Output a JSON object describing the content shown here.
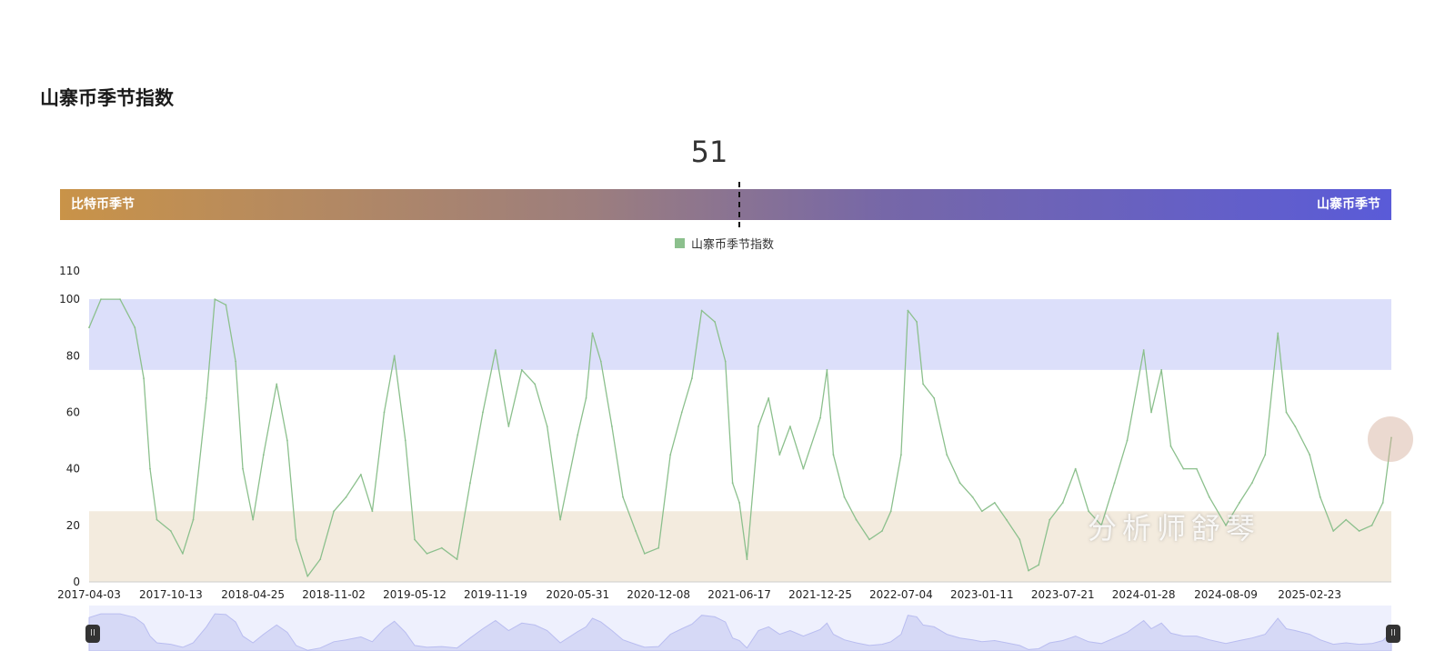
{
  "page": {
    "title": "山寨币季节指数"
  },
  "gauge": {
    "value": "51",
    "left_label": "比特币季节",
    "right_label": "山寨币季节",
    "value_fraction": 0.51
  },
  "legend": {
    "label": "山寨币季节指数",
    "color": "#8cc08d"
  },
  "watermark": "分析师舒琴",
  "chart_data": {
    "type": "line",
    "title": "山寨币季节指数",
    "ylim": [
      0,
      110
    ],
    "y_ticks": [
      "0",
      "20",
      "40",
      "60",
      "80",
      "100",
      "110"
    ],
    "x_ticks": [
      "2017-04-03",
      "2017-10-13",
      "2018-04-25",
      "2018-11-02",
      "2019-05-12",
      "2019-11-19",
      "2020-05-31",
      "2020-12-08",
      "2021-06-17",
      "2021-12-25",
      "2022-07-04",
      "2023-01-11",
      "2023-07-21",
      "2024-01-28",
      "2024-08-09",
      "2025-02-23"
    ],
    "x_range": [
      "2017-04-03",
      "2025-09-04"
    ],
    "bands": [
      {
        "from": 75,
        "to": 100,
        "color": "#dcdffa"
      },
      {
        "from": 0,
        "to": 25,
        "color": "#f3ebde"
      }
    ],
    "series": [
      {
        "name": "山寨币季节指数",
        "color": "#8cc08d",
        "points": [
          [
            "2017-04-03",
            90
          ],
          [
            "2017-05-01",
            100
          ],
          [
            "2017-06-15",
            100
          ],
          [
            "2017-07-20",
            90
          ],
          [
            "2017-08-10",
            72
          ],
          [
            "2017-08-25",
            40
          ],
          [
            "2017-09-10",
            22
          ],
          [
            "2017-10-13",
            18
          ],
          [
            "2017-11-10",
            10
          ],
          [
            "2017-12-05",
            22
          ],
          [
            "2018-01-05",
            65
          ],
          [
            "2018-01-25",
            100
          ],
          [
            "2018-02-20",
            98
          ],
          [
            "2018-03-15",
            78
          ],
          [
            "2018-04-01",
            40
          ],
          [
            "2018-04-25",
            22
          ],
          [
            "2018-05-20",
            45
          ],
          [
            "2018-06-20",
            70
          ],
          [
            "2018-07-15",
            50
          ],
          [
            "2018-08-05",
            15
          ],
          [
            "2018-09-01",
            2
          ],
          [
            "2018-10-01",
            8
          ],
          [
            "2018-11-02",
            25
          ],
          [
            "2018-12-01",
            30
          ],
          [
            "2019-01-05",
            38
          ],
          [
            "2019-02-01",
            25
          ],
          [
            "2019-03-01",
            60
          ],
          [
            "2019-03-25",
            80
          ],
          [
            "2019-04-20",
            50
          ],
          [
            "2019-05-12",
            15
          ],
          [
            "2019-06-10",
            10
          ],
          [
            "2019-07-15",
            12
          ],
          [
            "2019-08-20",
            8
          ],
          [
            "2019-09-20",
            35
          ],
          [
            "2019-10-20",
            60
          ],
          [
            "2019-11-19",
            82
          ],
          [
            "2019-12-20",
            55
          ],
          [
            "2020-01-20",
            75
          ],
          [
            "2020-02-20",
            70
          ],
          [
            "2020-03-20",
            55
          ],
          [
            "2020-04-20",
            22
          ],
          [
            "2020-05-31",
            52
          ],
          [
            "2020-06-20",
            65
          ],
          [
            "2020-07-05",
            88
          ],
          [
            "2020-07-25",
            78
          ],
          [
            "2020-08-20",
            55
          ],
          [
            "2020-09-15",
            30
          ],
          [
            "2020-10-15",
            18
          ],
          [
            "2020-11-05",
            10
          ],
          [
            "2020-12-08",
            12
          ],
          [
            "2021-01-05",
            45
          ],
          [
            "2021-02-01",
            60
          ],
          [
            "2021-02-25",
            72
          ],
          [
            "2021-03-20",
            96
          ],
          [
            "2021-04-20",
            92
          ],
          [
            "2021-05-15",
            78
          ],
          [
            "2021-06-01",
            35
          ],
          [
            "2021-06-17",
            28
          ],
          [
            "2021-07-05",
            8
          ],
          [
            "2021-08-01",
            55
          ],
          [
            "2021-08-25",
            65
          ],
          [
            "2021-09-20",
            45
          ],
          [
            "2021-10-15",
            55
          ],
          [
            "2021-11-15",
            40
          ],
          [
            "2021-12-25",
            58
          ],
          [
            "2022-01-10",
            75
          ],
          [
            "2022-01-25",
            45
          ],
          [
            "2022-02-20",
            30
          ],
          [
            "2022-03-20",
            22
          ],
          [
            "2022-04-20",
            15
          ],
          [
            "2022-05-20",
            18
          ],
          [
            "2022-06-10",
            25
          ],
          [
            "2022-07-04",
            45
          ],
          [
            "2022-07-20",
            96
          ],
          [
            "2022-08-10",
            92
          ],
          [
            "2022-08-25",
            70
          ],
          [
            "2022-09-20",
            65
          ],
          [
            "2022-10-20",
            45
          ],
          [
            "2022-11-20",
            35
          ],
          [
            "2022-12-20",
            30
          ],
          [
            "2023-01-11",
            25
          ],
          [
            "2023-02-10",
            28
          ],
          [
            "2023-03-10",
            22
          ],
          [
            "2023-04-10",
            15
          ],
          [
            "2023-05-01",
            4
          ],
          [
            "2023-05-25",
            6
          ],
          [
            "2023-06-20",
            22
          ],
          [
            "2023-07-21",
            28
          ],
          [
            "2023-08-20",
            40
          ],
          [
            "2023-09-20",
            25
          ],
          [
            "2023-10-20",
            20
          ],
          [
            "2023-11-20",
            35
          ],
          [
            "2023-12-20",
            50
          ],
          [
            "2024-01-28",
            82
          ],
          [
            "2024-02-15",
            60
          ],
          [
            "2024-03-10",
            75
          ],
          [
            "2024-04-01",
            48
          ],
          [
            "2024-05-01",
            40
          ],
          [
            "2024-06-01",
            40
          ],
          [
            "2024-07-01",
            30
          ],
          [
            "2024-08-09",
            20
          ],
          [
            "2024-09-10",
            28
          ],
          [
            "2024-10-10",
            35
          ],
          [
            "2024-11-10",
            45
          ],
          [
            "2024-12-10",
            88
          ],
          [
            "2024-12-30",
            60
          ],
          [
            "2025-01-20",
            55
          ],
          [
            "2025-02-23",
            45
          ],
          [
            "2025-03-20",
            30
          ],
          [
            "2025-04-20",
            18
          ],
          [
            "2025-05-20",
            22
          ],
          [
            "2025-06-20",
            18
          ],
          [
            "2025-07-20",
            20
          ],
          [
            "2025-08-15",
            28
          ],
          [
            "2025-09-04",
            51
          ]
        ]
      }
    ]
  }
}
